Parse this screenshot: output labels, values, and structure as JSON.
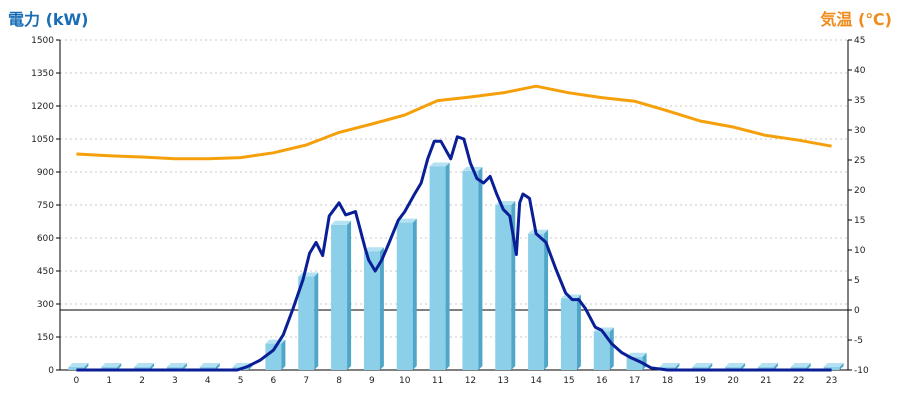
{
  "chart_data": {
    "type": "bar",
    "left_axis_title": "電力 (kW)",
    "right_axis_title": "気温 (℃)",
    "colors": {
      "left_title": "#1a6eb5",
      "right_title": "#f08c1e",
      "bar_front": "#8ccfe8",
      "bar_side": "#4fa6c8",
      "bar_top": "#b4e2f2",
      "power_line": "#0a1e96",
      "temp_line": "#f5a00a",
      "grid": "#c8c8c8"
    },
    "categories": [
      "0",
      "1",
      "2",
      "3",
      "4",
      "5",
      "6",
      "7",
      "8",
      "9",
      "10",
      "11",
      "12",
      "13",
      "14",
      "15",
      "16",
      "17",
      "18",
      "19",
      "20",
      "21",
      "22",
      "23"
    ],
    "left_ylim": [
      0,
      1500
    ],
    "left_ticks": [
      "0",
      "150",
      "300",
      "450",
      "600",
      "750",
      "900",
      "1050",
      "1200",
      "1350",
      "1500"
    ],
    "right_ylim": [
      -10,
      45
    ],
    "right_ticks": [
      "-10",
      "-5",
      "0",
      "5",
      "10",
      "15",
      "20",
      "25",
      "30",
      "35",
      "40",
      "45"
    ],
    "series": [
      {
        "kind": "bar",
        "values": [
          0,
          0,
          0,
          0,
          0,
          0,
          120,
          425,
          660,
          540,
          670,
          925,
          905,
          750,
          620,
          325,
          175,
          60,
          0,
          0,
          0,
          0,
          0,
          0
        ]
      },
      {
        "kind": "line",
        "axis": "right",
        "values": [
          26,
          25.7,
          25.5,
          25.2,
          25.2,
          25.4,
          26.2,
          27.5,
          29.6,
          31,
          32.5,
          34.9,
          35.5,
          36.2,
          37.3,
          36.2,
          35.4,
          34.8,
          33.2,
          31.5,
          30.5,
          29.1,
          28.3,
          27.3
        ]
      },
      {
        "kind": "line",
        "axis": "left",
        "x": [
          0,
          4.9,
          5.2,
          5.6,
          6,
          6.3,
          6.6,
          6.9,
          7.1,
          7.3,
          7.5,
          7.7,
          8,
          8.2,
          8.5,
          8.8,
          8.9,
          9.1,
          9.3,
          9.5,
          9.8,
          10,
          10.3,
          10.5,
          10.7,
          10.9,
          11.1,
          11.4,
          11.6,
          11.8,
          12,
          12.2,
          12.4,
          12.6,
          12.8,
          13,
          13.2,
          13.4,
          13.5,
          13.6,
          13.8,
          14,
          14.3,
          14.6,
          14.9,
          15.1,
          15.3,
          15.5,
          15.8,
          16,
          16.3,
          16.6,
          16.9,
          17.2,
          17.5,
          18,
          23
        ],
        "y": [
          0,
          0,
          15,
          45,
          90,
          160,
          280,
          410,
          530,
          580,
          520,
          700,
          760,
          705,
          720,
          550,
          500,
          450,
          500,
          570,
          680,
          720,
          800,
          850,
          960,
          1040,
          1040,
          960,
          1060,
          1050,
          940,
          870,
          850,
          880,
          800,
          730,
          700,
          525,
          760,
          800,
          780,
          620,
          580,
          460,
          350,
          320,
          320,
          280,
          195,
          180,
          120,
          80,
          55,
          35,
          10,
          0,
          0
        ]
      }
    ]
  }
}
